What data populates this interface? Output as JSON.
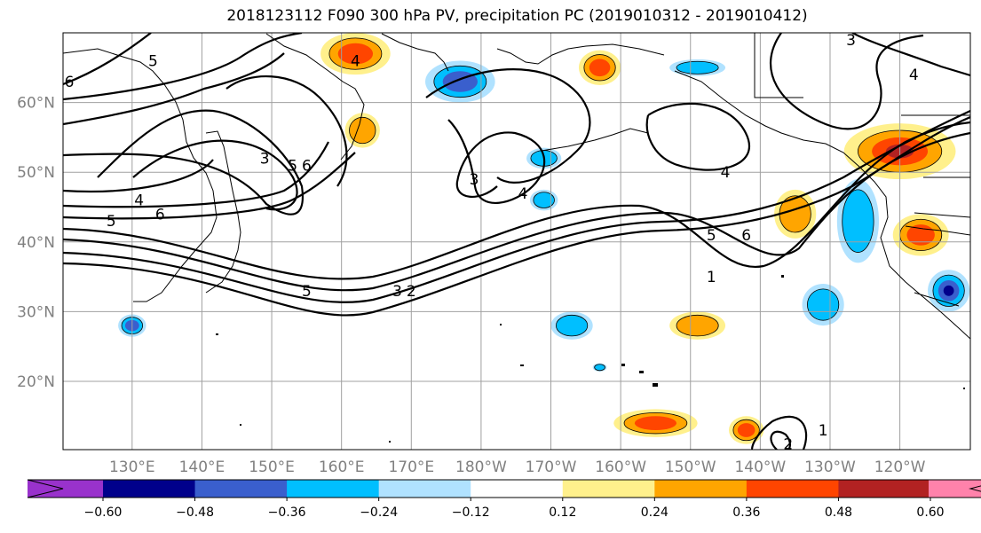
{
  "title": "2018123112 F090 300 hPa PV, precipitation PC (2019010312 - 2019010412)",
  "map": {
    "lat_ticks": [
      {
        "value": 20,
        "label": "20°N"
      },
      {
        "value": 30,
        "label": "30°N"
      },
      {
        "value": 40,
        "label": "40°N"
      },
      {
        "value": 50,
        "label": "50°N"
      },
      {
        "value": 60,
        "label": "60°N"
      }
    ],
    "lon_ticks": [
      {
        "value": 130,
        "label": "130°E"
      },
      {
        "value": 140,
        "label": "140°E"
      },
      {
        "value": 150,
        "label": "150°E"
      },
      {
        "value": 160,
        "label": "160°E"
      },
      {
        "value": 170,
        "label": "170°E"
      },
      {
        "value": 180,
        "label": "180°W"
      },
      {
        "value": 190,
        "label": "170°W"
      },
      {
        "value": 200,
        "label": "160°W"
      },
      {
        "value": 210,
        "label": "150°W"
      },
      {
        "value": 220,
        "label": "140°W"
      },
      {
        "value": 230,
        "label": "130°W"
      },
      {
        "value": 240,
        "label": "120°W"
      }
    ],
    "pv_contour_labels": [
      {
        "text": "6",
        "lon": 121,
        "lat": 63
      },
      {
        "text": "5",
        "lon": 133,
        "lat": 66
      },
      {
        "text": "4",
        "lon": 162,
        "lat": 66
      },
      {
        "text": "3",
        "lon": 149,
        "lat": 52
      },
      {
        "text": "5",
        "lon": 153,
        "lat": 51
      },
      {
        "text": "6",
        "lon": 155,
        "lat": 51
      },
      {
        "text": "4",
        "lon": 131,
        "lat": 46
      },
      {
        "text": "5",
        "lon": 127,
        "lat": 43
      },
      {
        "text": "6",
        "lon": 134,
        "lat": 44
      },
      {
        "text": "5",
        "lon": 155,
        "lat": 33
      },
      {
        "text": "3",
        "lon": 168,
        "lat": 33
      },
      {
        "text": "2",
        "lon": 170,
        "lat": 33
      },
      {
        "text": "1",
        "lon": 213,
        "lat": 35
      },
      {
        "text": "3",
        "lon": 179,
        "lat": 49
      },
      {
        "text": "4",
        "lon": 186,
        "lat": 47
      },
      {
        "text": "4",
        "lon": 215,
        "lat": 50
      },
      {
        "text": "5",
        "lon": 213,
        "lat": 41
      },
      {
        "text": "6",
        "lon": 218,
        "lat": 41
      },
      {
        "text": "3",
        "lon": 233,
        "lat": 69
      },
      {
        "text": "4",
        "lon": 242,
        "lat": 64
      },
      {
        "text": "1",
        "lon": 229,
        "lat": 13
      },
      {
        "text": "2",
        "lon": 224,
        "lat": 11
      }
    ]
  },
  "colorbar": {
    "levels": [
      "-0.60",
      "−0.48",
      "−0.36",
      "−0.24",
      "−0.12",
      "0.12",
      "0.24",
      "0.36",
      "0.48",
      "0.60"
    ],
    "display_labels": [
      "−0.60",
      "−0.48",
      "−0.36",
      "−0.24",
      "−0.12",
      "0.12",
      "0.24",
      "0.36",
      "0.48",
      "0.60"
    ],
    "colors": [
      "#9932cc",
      "#00008b",
      "#3a5fcd",
      "#00bfff",
      "#b0e2ff",
      "#ffffff",
      "#fff08c",
      "#ffa500",
      "#ff4500",
      "#b22222",
      "#ff82ab"
    ]
  },
  "precip_patches": [
    {
      "sign": "pos",
      "lon": 162,
      "lat": 67,
      "rx": 5,
      "ry": 3,
      "level": 2
    },
    {
      "sign": "pos",
      "lon": 163,
      "lat": 56,
      "rx": 2.5,
      "ry": 2.5,
      "level": 1
    },
    {
      "sign": "neg",
      "lon": 177,
      "lat": 63,
      "rx": 5,
      "ry": 3,
      "level": 2
    },
    {
      "sign": "pos",
      "lon": 197,
      "lat": 65,
      "rx": 3,
      "ry": 2.5,
      "level": 2
    },
    {
      "sign": "neg",
      "lon": 211,
      "lat": 65,
      "rx": 4,
      "ry": 1.2,
      "level": 1
    },
    {
      "sign": "neg",
      "lon": 189,
      "lat": 52,
      "rx": 2.5,
      "ry": 1.5,
      "level": 1
    },
    {
      "sign": "neg",
      "lon": 189,
      "lat": 46,
      "rx": 2,
      "ry": 1.5,
      "level": 1
    },
    {
      "sign": "pos",
      "lon": 225,
      "lat": 44,
      "rx": 3,
      "ry": 3.5,
      "level": 1
    },
    {
      "sign": "pos",
      "lon": 240,
      "lat": 53,
      "rx": 8,
      "ry": 4,
      "level": 3
    },
    {
      "sign": "pos",
      "lon": 243,
      "lat": 41,
      "rx": 4,
      "ry": 3,
      "level": 2
    },
    {
      "sign": "neg",
      "lon": 234,
      "lat": 43,
      "rx": 3,
      "ry": 6,
      "level": 1
    },
    {
      "sign": "neg",
      "lon": 229,
      "lat": 31,
      "rx": 3,
      "ry": 3,
      "level": 1
    },
    {
      "sign": "neg",
      "lon": 247,
      "lat": 33,
      "rx": 3,
      "ry": 3,
      "level": 3
    },
    {
      "sign": "neg",
      "lon": 130,
      "lat": 28,
      "rx": 2,
      "ry": 1.6,
      "level": 2
    },
    {
      "sign": "neg",
      "lon": 193,
      "lat": 28,
      "rx": 3,
      "ry": 2,
      "level": 1
    },
    {
      "sign": "pos",
      "lon": 211,
      "lat": 28,
      "rx": 4,
      "ry": 2,
      "level": 1
    },
    {
      "sign": "pos",
      "lon": 205,
      "lat": 14,
      "rx": 6,
      "ry": 2,
      "level": 2
    },
    {
      "sign": "pos",
      "lon": 218,
      "lat": 13,
      "rx": 2.5,
      "ry": 2,
      "level": 2
    },
    {
      "sign": "neg",
      "lon": 197,
      "lat": 22,
      "rx": 1,
      "ry": 0.6,
      "level": 1
    }
  ]
}
